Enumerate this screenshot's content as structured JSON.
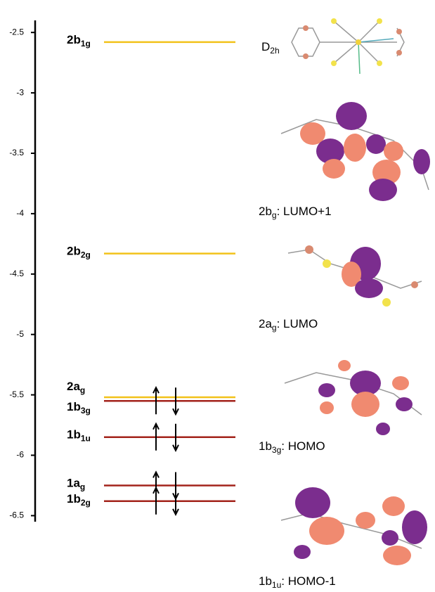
{
  "chart_data": {
    "type": "energy-levels",
    "ylim": [
      -6.55,
      -2.4
    ],
    "yticks": [
      -2.5,
      -3,
      -3.5,
      -4,
      -4.5,
      -5,
      -5.5,
      -6,
      -6.5
    ],
    "levels": [
      {
        "label": {
          "main": "2b",
          "sub": "1g"
        },
        "value": -2.58,
        "color": "#f2c21b",
        "electrons": 0
      },
      {
        "label": {
          "main": "2b",
          "sub": "2g"
        },
        "value": -4.33,
        "color": "#f2c21b",
        "electrons": 0
      },
      {
        "label": {
          "main": "2a",
          "sub": "g"
        },
        "value": -5.52,
        "color": "#f2c21b",
        "electrons": 0
      },
      {
        "label": {
          "main": "1b",
          "sub": "3g"
        },
        "value": -5.55,
        "color": "#a3231b",
        "electrons": 2
      },
      {
        "label": {
          "main": "1b",
          "sub": "1u"
        },
        "value": -5.85,
        "color": "#a3231b",
        "electrons": 2
      },
      {
        "label": {
          "main": "1a",
          "sub": "g"
        },
        "value": -6.25,
        "color": "#a3231b",
        "electrons": 2
      },
      {
        "label": {
          "main": "1b",
          "sub": "2g"
        },
        "value": -6.38,
        "color": "#a3231b",
        "electrons": 2
      }
    ],
    "symmetry": {
      "main": "D",
      "sub": "2h"
    },
    "orbitals": [
      {
        "main": "2b",
        "sub": "g",
        "text": ": LUMO+1"
      },
      {
        "main": "2a",
        "sub": "g",
        "text": ": LUMO"
      },
      {
        "main": "1b",
        "sub": "3g",
        "text": ": HOMO"
      },
      {
        "main": "1b",
        "sub": "1u",
        "text": ": HOMO-1"
      }
    ]
  }
}
